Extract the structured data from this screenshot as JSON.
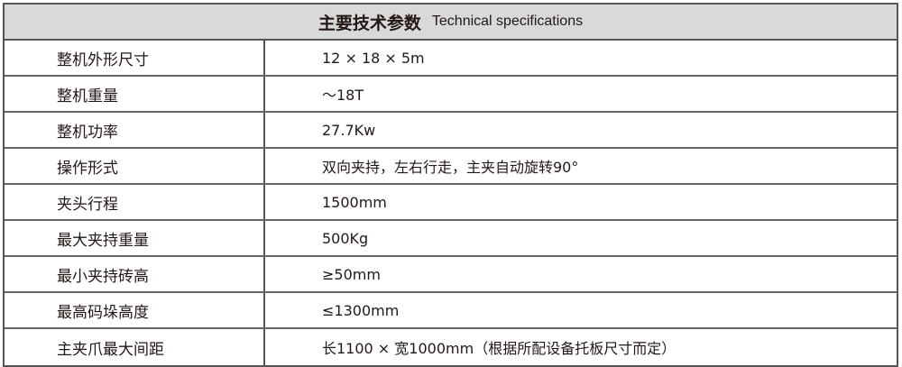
{
  "header": {
    "title_cn": "主要技术参数",
    "title_en": "Technical specifications"
  },
  "rows": [
    {
      "label": "整机外形尺寸",
      "value": "12 × 18 × 5m"
    },
    {
      "label": "整机重量",
      "value": "～18T"
    },
    {
      "label": "整机功率",
      "value": "27.7Kw"
    },
    {
      "label": "操作形式",
      "value": "双向夹持，左右行走，主夹自动旋转90°"
    },
    {
      "label": "夹头行程",
      "value": "1500mm"
    },
    {
      "label": "最大夹持重量",
      "value": "500Kg"
    },
    {
      "label": "最小夹持砖高",
      "value": "≥50mm"
    },
    {
      "label": "最高码垛高度",
      "value": "≤1300mm"
    },
    {
      "label": "主夹爪最大间距",
      "value": "长1100 × 宽1000mm（根据所配设备托板尺寸而定）"
    }
  ]
}
